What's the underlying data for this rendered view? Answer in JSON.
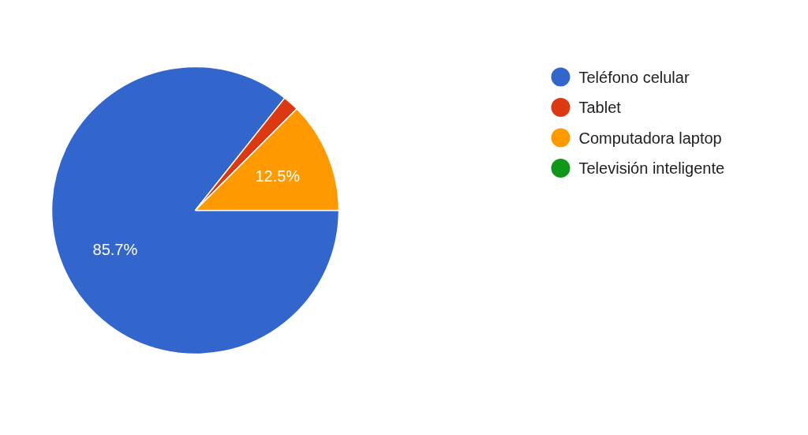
{
  "chart_data": {
    "type": "pie",
    "categories": [
      "Teléfono celular",
      "Tablet",
      "Computadora laptop",
      "Televisión inteligente"
    ],
    "values": [
      85.7,
      1.8,
      12.5,
      0
    ],
    "colors": [
      "#3366cc",
      "#dc3912",
      "#ff9900",
      "#109618"
    ],
    "value_labels": [
      "85.7%",
      null,
      "12.5%",
      null
    ],
    "legend": "top right"
  }
}
